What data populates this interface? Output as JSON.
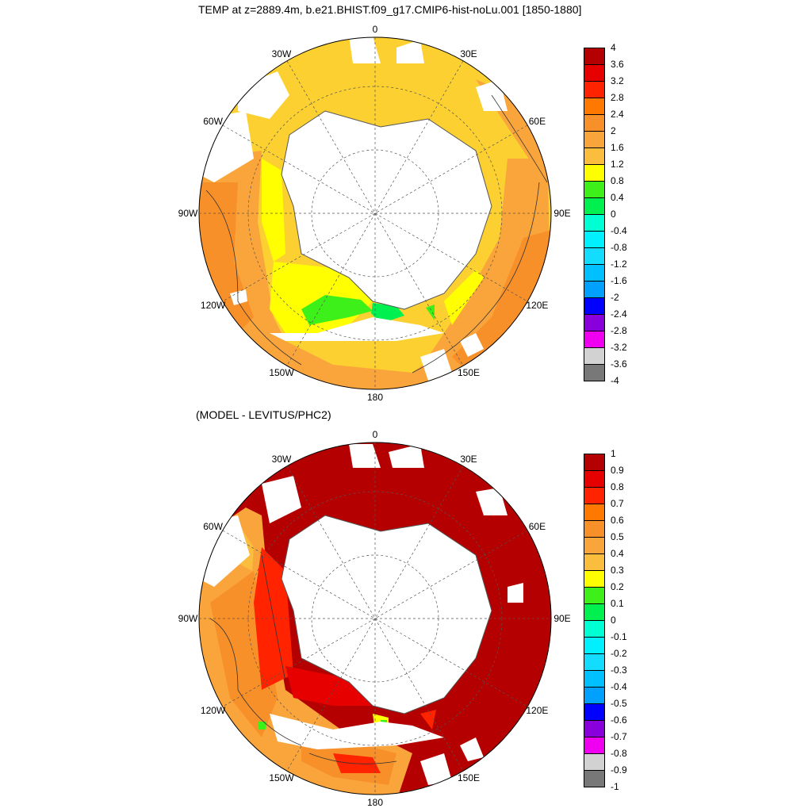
{
  "titles": {
    "top": "TEMP at z=2889.4m, b.e21.BHIST.f09_g17.CMIP6-hist-noLu.001 [1850-1880]",
    "bottom": "(MODEL - LEVITUS/PHC2)"
  },
  "longitude_labels": [
    "0",
    "30E",
    "60E",
    "90E",
    "120E",
    "150E",
    "180",
    "150W",
    "120W",
    "90W",
    "60W",
    "30W"
  ],
  "colorbars": {
    "top": {
      "labels": [
        "4",
        "3.6",
        "3.2",
        "2.8",
        "2.4",
        "2",
        "1.6",
        "1.2",
        "0.8",
        "0.4",
        "0",
        "-0.4",
        "-0.8",
        "-1.2",
        "-1.6",
        "-2",
        "-2.4",
        "-2.8",
        "-3.2",
        "-3.6",
        "-4"
      ],
      "colors": [
        "#b40000",
        "#e60000",
        "#ff2300",
        "#ff7800",
        "#f8902a",
        "#faa53c",
        "#fbbd3d",
        "#ffff00",
        "#3ef019",
        "#00f050",
        "#00ffd2",
        "#00f0ff",
        "#14dcff",
        "#00c0ff",
        "#00a0ff",
        "#0000ff",
        "#8a00dc",
        "#f000f0",
        "#d2d2d2",
        "#787878"
      ]
    },
    "bottom": {
      "labels": [
        "1",
        "0.9",
        "0.8",
        "0.7",
        "0.6",
        "0.5",
        "0.4",
        "0.3",
        "0.2",
        "0.1",
        "0",
        "-0.1",
        "-0.2",
        "-0.3",
        "-0.4",
        "-0.5",
        "-0.6",
        "-0.7",
        "-0.8",
        "-0.9",
        "-1"
      ],
      "colors": [
        "#b40000",
        "#e60000",
        "#ff2300",
        "#ff7800",
        "#f8902a",
        "#faa53c",
        "#fbbd3d",
        "#ffff00",
        "#3ef019",
        "#00f050",
        "#00ffd2",
        "#00f0ff",
        "#14dcff",
        "#00c0ff",
        "#00a0ff",
        "#0000ff",
        "#8a00dc",
        "#f000f0",
        "#d2d2d2",
        "#787878"
      ]
    }
  },
  "chart_data": [
    {
      "type": "heatmap",
      "projection": "south polar stereographic",
      "title": "TEMP at z=2889.4m, b.e21.BHIST.f09_g17.CMIP6-hist-noLu.001 [1850-1880]",
      "colorbar_range": [
        -4,
        4
      ],
      "contour_interval": 0.4,
      "dominant_values": "1.2 to 2.4 over most of the ocean; 0.4 to 1.2 near the Ross Sea"
    },
    {
      "type": "heatmap",
      "projection": "south polar stereographic",
      "title": "(MODEL - LEVITUS/PHC2)",
      "colorbar_range": [
        -1,
        1
      ],
      "contour_interval": 0.1,
      "dominant_values": "above 0.9 over Atlantic and Indian sectors; 0.4 to 0.8 in the Pacific sector"
    }
  ]
}
